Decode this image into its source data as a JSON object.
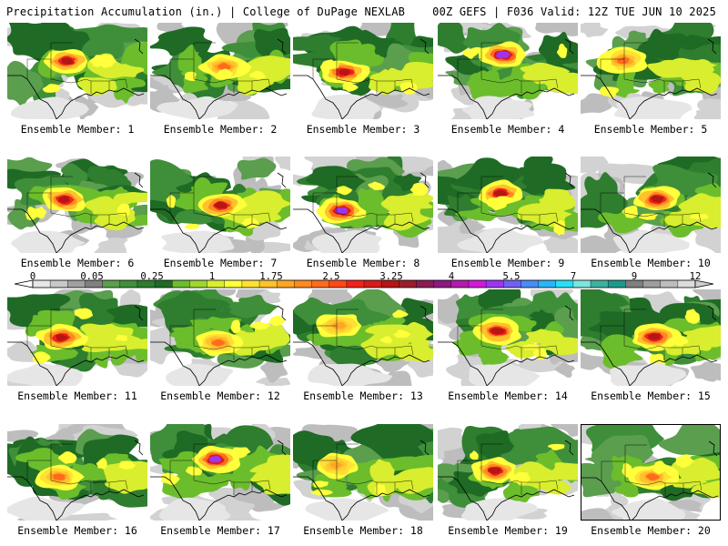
{
  "header": {
    "left": "Precipitation Accumulation (in.) | College of DuPage NEXLAB",
    "right": "00Z GEFS | F036 Valid: 12Z TUE JUN 10 2025"
  },
  "colorbar": {
    "labels": [
      "0",
      "0.05",
      "0.25",
      "1",
      "1.75",
      "2.5",
      "3.25",
      "4",
      "5.5",
      "7",
      "9",
      "12"
    ],
    "colors": [
      "#e6e6e6",
      "#c8c8c8",
      "#a0a0a0",
      "#808080",
      "#5a9e4e",
      "#3f8f3a",
      "#2f7d2f",
      "#1f6b25",
      "#6cbd2c",
      "#9fd62e",
      "#d8ee2e",
      "#ffff3c",
      "#ffe034",
      "#ffc22c",
      "#ffa526",
      "#ff8a20",
      "#ff6b1c",
      "#ff4a17",
      "#f2231a",
      "#d91a1a",
      "#b51515",
      "#991d2e",
      "#8a1c55",
      "#8d1a80",
      "#b51ab0",
      "#d01ad8",
      "#9b35f0",
      "#7060f5",
      "#4a8cf7",
      "#2ab5f7",
      "#26e0f5",
      "#7be6de",
      "#3fb0a0",
      "#1f9a8a",
      "#808080",
      "#9e9e9e",
      "#bdbdbd",
      "#dcdcdc"
    ]
  },
  "members": [
    {
      "label": "Ensemble Member: 1",
      "peak": "red"
    },
    {
      "label": "Ensemble Member: 2",
      "peak": "orange"
    },
    {
      "label": "Ensemble Member: 3",
      "peak": "red"
    },
    {
      "label": "Ensemble Member: 4",
      "peak": "purple"
    },
    {
      "label": "Ensemble Member: 5",
      "peak": "orange"
    },
    {
      "label": "Ensemble Member: 6",
      "peak": "red"
    },
    {
      "label": "Ensemble Member: 7",
      "peak": "red"
    },
    {
      "label": "Ensemble Member: 8",
      "peak": "purple"
    },
    {
      "label": "Ensemble Member: 9",
      "peak": "red"
    },
    {
      "label": "Ensemble Member: 10",
      "peak": "red"
    },
    {
      "label": "Ensemble Member: 11",
      "peak": "red"
    },
    {
      "label": "Ensemble Member: 12",
      "peak": "orange"
    },
    {
      "label": "Ensemble Member: 13",
      "peak": "yellow"
    },
    {
      "label": "Ensemble Member: 14",
      "peak": "red"
    },
    {
      "label": "Ensemble Member: 15",
      "peak": "red"
    },
    {
      "label": "Ensemble Member: 16",
      "peak": "orange"
    },
    {
      "label": "Ensemble Member: 17",
      "peak": "purple"
    },
    {
      "label": "Ensemble Member: 18",
      "peak": "yellow"
    },
    {
      "label": "Ensemble Member: 19",
      "peak": "red"
    },
    {
      "label": "Ensemble Member: 20",
      "peak": "orange"
    }
  ]
}
